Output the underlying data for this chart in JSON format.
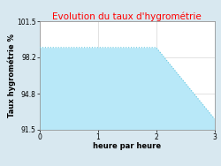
{
  "title": "Evolution du taux d'hygrométrie",
  "title_color": "#ff0000",
  "xlabel": "heure par heure",
  "ylabel": "Taux hygrométrie %",
  "x": [
    0,
    2,
    3
  ],
  "y": [
    99.1,
    99.1,
    92.5
  ],
  "ylim": [
    91.5,
    101.5
  ],
  "xlim": [
    0,
    3
  ],
  "yticks": [
    91.5,
    94.8,
    98.2,
    101.5
  ],
  "xticks": [
    0,
    1,
    2,
    3
  ],
  "line_color": "#66c8e0",
  "fill_color": "#b8e8f8",
  "bg_color": "#d8e8f0",
  "plot_bg_color": "#ffffff",
  "grid_color": "#cccccc",
  "title_fontsize": 7.5,
  "label_fontsize": 6,
  "tick_fontsize": 5.5
}
